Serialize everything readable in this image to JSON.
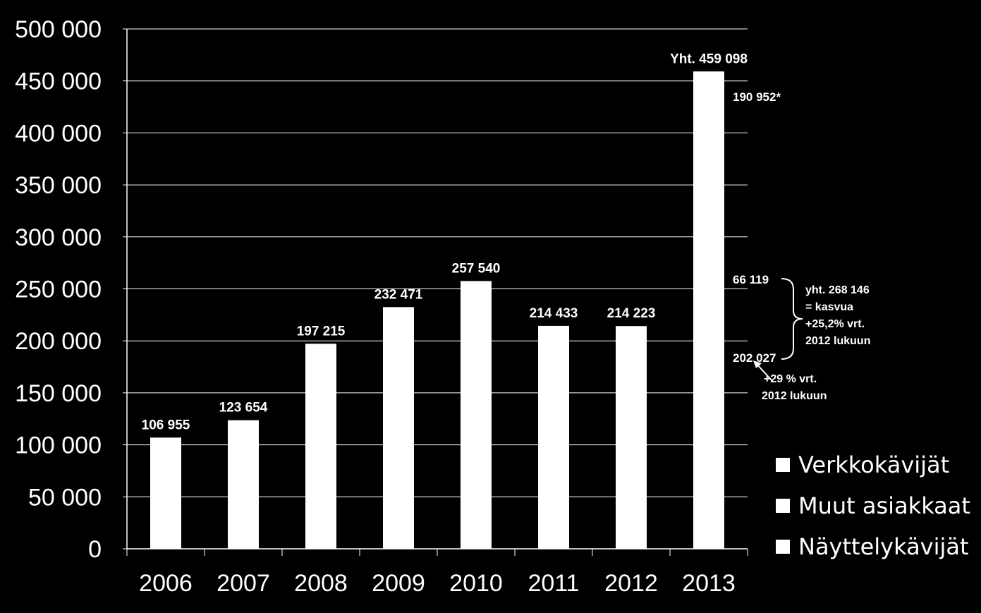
{
  "chart_data": {
    "type": "bar",
    "categories": [
      "2006",
      "2007",
      "2008",
      "2009",
      "2010",
      "2011",
      "2012",
      "2013"
    ],
    "values": [
      106955,
      123654,
      197215,
      232471,
      257540,
      214433,
      214223,
      459098
    ],
    "ylim": [
      0,
      500000
    ],
    "yticks": [
      0,
      50000,
      100000,
      150000,
      200000,
      250000,
      300000,
      350000,
      400000,
      450000,
      500000
    ],
    "ytick_labels": [
      "0",
      "50 000",
      "100 000",
      "150 000",
      "200 000",
      "250 000",
      "300 000",
      "350 000",
      "400 000",
      "450 000",
      "500 000"
    ],
    "data_labels": [
      "106 955",
      "123 654",
      "197 215",
      "232 471",
      "257 540",
      "214 433",
      "214 223",
      "Yht. 459 098"
    ],
    "grid": true,
    "legend_position": "bottom-right",
    "colors": {
      "background": "#000000",
      "bars": "#ffffff",
      "text": "#ffffff",
      "grid": "#ffffff"
    },
    "legend": [
      "Verkkokävijät",
      "Muut asiakkaat",
      "Näyttelykävijät"
    ],
    "annotations": {
      "seg_top": {
        "value": 190952,
        "text": "190 952*"
      },
      "seg_mid": {
        "value": 66119,
        "text": "66 119"
      },
      "seg_low": {
        "value": 202027,
        "text": "202 027"
      },
      "brace_text": [
        "yht. 268 146",
        "= kasvua",
        "+25,2% vrt.",
        "2012 lukuun"
      ],
      "arrow_text": [
        "+29 % vrt.",
        "2012 lukuun"
      ]
    }
  }
}
